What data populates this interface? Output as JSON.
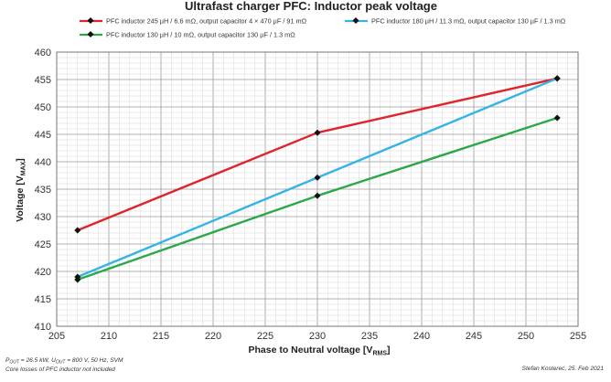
{
  "chart_data": {
    "type": "line",
    "title": "Ultrafast charger PFC: Inductor peak voltage",
    "xlabel": {
      "main": "Phase to Neutral voltage [V",
      "sub": "RMS",
      "end": "]"
    },
    "ylabel": {
      "main": "Voltage [V",
      "sub": "MAX",
      "end": "]"
    },
    "xlim": [
      205,
      255
    ],
    "ylim": [
      410,
      460
    ],
    "xticks": [
      "205",
      "210",
      "215",
      "220",
      "225",
      "230",
      "235",
      "240",
      "245",
      "250",
      "255"
    ],
    "yticks": [
      "410",
      "415",
      "420",
      "425",
      "430",
      "435",
      "440",
      "445",
      "450",
      "455",
      "460"
    ],
    "grid": true,
    "legend_position": "top",
    "series": [
      {
        "name": "PFC inductor 245 µH / 6.6 mΩ, output capacitor 4 × 470 µF / 91 mΩ",
        "color": "#e0242b",
        "x": [
          207,
          230,
          253
        ],
        "y": [
          427.5,
          445.3,
          455.2
        ]
      },
      {
        "name": "PFC inductor 180 µH / 11.3 mΩ, output capacitor 130 µF / 1.3 mΩ",
        "color": "#35b4e6",
        "x": [
          207,
          230,
          253
        ],
        "y": [
          419.0,
          437.1,
          455.2
        ]
      },
      {
        "name": "PFC inductor 130 µH / 10 mΩ, output capacitor 130 µF / 1.3 mΩ",
        "color": "#2aa84a",
        "x": [
          207,
          230,
          253
        ],
        "y": [
          418.5,
          433.8,
          448.0
        ]
      }
    ]
  },
  "footnote": {
    "line1_a": "P",
    "line1_a_sub": "OUT",
    "line1_b": " = 26.5 kW, U",
    "line1_b_sub": "OUT",
    "line1_c": " = 800 V, 50 Hz, SVM",
    "line2": "Core losses of PFC inductor not included"
  },
  "credit": "Stefan Kosterec, 25. Feb 2021"
}
